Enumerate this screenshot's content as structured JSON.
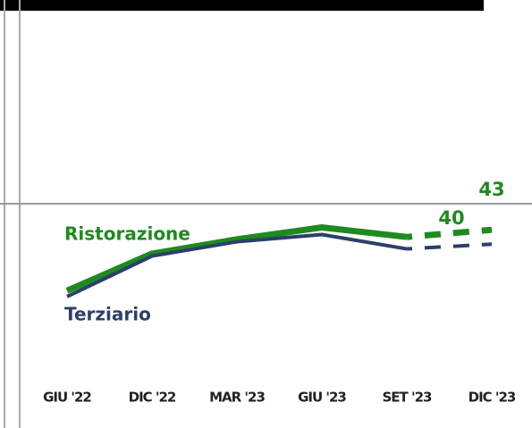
{
  "chart_data": {
    "type": "line",
    "categories": [
      "GIU '22",
      "DIC '22",
      "MAR '23",
      "GIU '23",
      "SET '23",
      "DIC '23"
    ],
    "forecast_from": 4,
    "series": [
      {
        "name": "Ristorazione",
        "color": "#1f8a1f",
        "values": [
          17.5,
          33,
          39,
          44,
          40,
          43
        ],
        "value_labels": [
          null,
          null,
          null,
          null,
          "40",
          "43"
        ]
      },
      {
        "name": "Terziario",
        "color": "#2b3f6b",
        "values": [
          15,
          32,
          38,
          41,
          35,
          37
        ]
      }
    ]
  }
}
